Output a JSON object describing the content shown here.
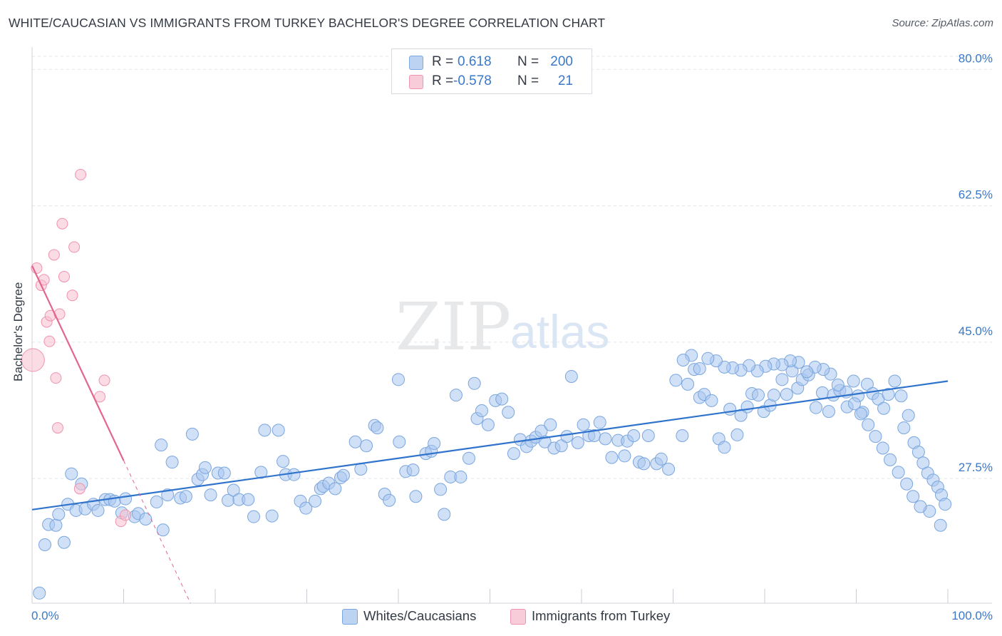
{
  "title": "WHITE/CAUCASIAN VS IMMIGRANTS FROM TURKEY BACHELOR'S DEGREE CORRELATION CHART",
  "source": "Source: ZipAtlas.com",
  "watermark": {
    "zip": "ZIP",
    "atlas": "atlas"
  },
  "legend": {
    "rows": [
      {
        "r_label": "R =",
        "r_value": "0.618",
        "n_label": "N =",
        "n_value": "200"
      },
      {
        "r_label": "R =",
        "r_value": "-0.578",
        "n_label": "N =",
        "n_value": "21"
      }
    ]
  },
  "colors": {
    "blue_fill": "#a9c6ee",
    "blue_stroke": "#7aa6df",
    "blue_line": "#2f73cc",
    "pink_fill": "#f7bfd0",
    "pink_stroke": "#ef93ae",
    "pink_line": "#e4658e",
    "axis_text": "#3a78c9",
    "grid": "#e3e5e9"
  },
  "chart_data": {
    "type": "scatter",
    "title": "WHITE/CAUCASIAN VS IMMIGRANTS FROM TURKEY BACHELOR'S DEGREE CORRELATION CHART",
    "xlabel": "",
    "ylabel": "Bachelor's Degree",
    "xlim": [
      0,
      100
    ],
    "ylim": [
      11.5,
      82.5
    ],
    "x_tick_labels": [
      "0.0%",
      "100.0%"
    ],
    "y_ticks": [
      27.5,
      45.0,
      62.5,
      80.0
    ],
    "y_tick_labels": [
      "27.5%",
      "45.0%",
      "62.5%",
      "80.0%"
    ],
    "grid": "horizontal dashed",
    "legend_position": "top-center",
    "series": [
      {
        "name": "Whites/Caucasians",
        "color": "#a9c6ee",
        "trend": {
          "x": [
            0,
            100
          ],
          "y": [
            23.5,
            40.0
          ],
          "style": "solid"
        },
        "points": [
          [
            0.8,
            12.8
          ],
          [
            1.4,
            19.0
          ],
          [
            1.8,
            21.6
          ],
          [
            2.6,
            21.5
          ],
          [
            2.9,
            22.9
          ],
          [
            3.5,
            19.3
          ],
          [
            3.9,
            24.2
          ],
          [
            4.3,
            28.1
          ],
          [
            4.8,
            23.4
          ],
          [
            5.4,
            26.8
          ],
          [
            5.8,
            23.6
          ],
          [
            6.7,
            24.2
          ],
          [
            7.2,
            23.4
          ],
          [
            8.0,
            24.8
          ],
          [
            8.5,
            24.8
          ],
          [
            9.0,
            24.6
          ],
          [
            9.8,
            23.1
          ],
          [
            10.2,
            24.9
          ],
          [
            11.2,
            22.6
          ],
          [
            11.6,
            23.0
          ],
          [
            12.4,
            22.3
          ],
          [
            13.6,
            24.5
          ],
          [
            14.1,
            31.8
          ],
          [
            14.3,
            20.9
          ],
          [
            14.8,
            25.4
          ],
          [
            15.3,
            29.6
          ],
          [
            16.2,
            25.0
          ],
          [
            16.8,
            25.2
          ],
          [
            17.5,
            33.2
          ],
          [
            18.1,
            27.4
          ],
          [
            18.6,
            28.0
          ],
          [
            18.9,
            28.9
          ],
          [
            19.5,
            25.4
          ],
          [
            20.3,
            28.2
          ],
          [
            21.0,
            28.2
          ],
          [
            21.4,
            24.7
          ],
          [
            22.0,
            26.0
          ],
          [
            22.6,
            24.8
          ],
          [
            23.6,
            24.8
          ],
          [
            24.2,
            22.6
          ],
          [
            25.0,
            28.3
          ],
          [
            25.4,
            33.7
          ],
          [
            26.2,
            22.7
          ],
          [
            26.9,
            33.7
          ],
          [
            27.4,
            29.7
          ],
          [
            27.7,
            28.0
          ],
          [
            28.6,
            28.0
          ],
          [
            29.3,
            24.6
          ],
          [
            29.9,
            23.7
          ],
          [
            30.9,
            24.6
          ],
          [
            31.5,
            26.2
          ],
          [
            31.8,
            26.5
          ],
          [
            32.4,
            26.9
          ],
          [
            33.1,
            26.2
          ],
          [
            33.7,
            27.6
          ],
          [
            34.0,
            27.9
          ],
          [
            35.3,
            32.2
          ],
          [
            35.9,
            28.7
          ],
          [
            36.5,
            31.7
          ],
          [
            37.4,
            34.3
          ],
          [
            37.7,
            34.0
          ],
          [
            38.5,
            25.5
          ],
          [
            39.0,
            24.7
          ],
          [
            40.0,
            40.2
          ],
          [
            40.1,
            32.2
          ],
          [
            40.8,
            28.4
          ],
          [
            41.6,
            28.6
          ],
          [
            41.9,
            25.2
          ],
          [
            43.0,
            30.7
          ],
          [
            43.6,
            31.0
          ],
          [
            43.9,
            32.0
          ],
          [
            44.6,
            26.1
          ],
          [
            45.0,
            22.9
          ],
          [
            45.7,
            27.7
          ],
          [
            46.3,
            38.2
          ],
          [
            46.8,
            27.7
          ],
          [
            47.7,
            30.1
          ],
          [
            48.3,
            39.7
          ],
          [
            48.6,
            35.2
          ],
          [
            49.1,
            36.2
          ],
          [
            49.8,
            34.4
          ],
          [
            50.6,
            37.5
          ],
          [
            51.3,
            37.7
          ],
          [
            52.0,
            36.0
          ],
          [
            52.6,
            30.7
          ],
          [
            53.3,
            32.5
          ],
          [
            54.0,
            31.6
          ],
          [
            54.5,
            32.3
          ],
          [
            55.0,
            32.8
          ],
          [
            55.6,
            33.6
          ],
          [
            56.0,
            32.2
          ],
          [
            56.6,
            34.4
          ],
          [
            57.0,
            31.4
          ],
          [
            57.8,
            31.7
          ],
          [
            58.4,
            32.9
          ],
          [
            58.9,
            40.6
          ],
          [
            59.6,
            32.1
          ],
          [
            60.2,
            34.4
          ],
          [
            60.8,
            33.0
          ],
          [
            61.4,
            33.0
          ],
          [
            62.0,
            34.7
          ],
          [
            62.6,
            32.6
          ],
          [
            63.3,
            30.2
          ],
          [
            64.0,
            32.4
          ],
          [
            64.7,
            30.4
          ],
          [
            65.0,
            32.3
          ],
          [
            65.7,
            33.0
          ],
          [
            66.3,
            29.6
          ],
          [
            66.8,
            29.4
          ],
          [
            67.3,
            33.0
          ],
          [
            68.2,
            29.4
          ],
          [
            68.7,
            30.0
          ],
          [
            69.5,
            28.7
          ],
          [
            70.3,
            40.1
          ],
          [
            71.0,
            33.0
          ],
          [
            71.6,
            39.6
          ],
          [
            72.3,
            41.5
          ],
          [
            72.9,
            37.9
          ],
          [
            73.4,
            38.3
          ],
          [
            74.2,
            37.5
          ],
          [
            75.0,
            32.6
          ],
          [
            75.6,
            31.5
          ],
          [
            76.2,
            36.4
          ],
          [
            77.0,
            33.1
          ],
          [
            77.4,
            35.6
          ],
          [
            78.1,
            36.7
          ],
          [
            78.6,
            38.4
          ],
          [
            79.3,
            38.2
          ],
          [
            79.9,
            36.1
          ],
          [
            80.6,
            36.9
          ],
          [
            81.0,
            38.2
          ],
          [
            81.9,
            40.2
          ],
          [
            82.4,
            38.3
          ],
          [
            83.0,
            41.3
          ],
          [
            83.6,
            39.1
          ],
          [
            84.1,
            40.2
          ],
          [
            84.8,
            40.8
          ],
          [
            85.6,
            36.6
          ],
          [
            86.3,
            38.5
          ],
          [
            87.0,
            36.1
          ],
          [
            87.5,
            38.2
          ],
          [
            88.2,
            38.8
          ],
          [
            89.0,
            36.7
          ],
          [
            89.7,
            40.0
          ],
          [
            90.2,
            38.1
          ],
          [
            90.7,
            36.0
          ],
          [
            91.2,
            39.6
          ],
          [
            91.8,
            38.4
          ],
          [
            92.4,
            37.7
          ],
          [
            93.0,
            36.5
          ],
          [
            93.5,
            38.3
          ],
          [
            94.2,
            40.0
          ],
          [
            94.9,
            38.1
          ],
          [
            95.2,
            34.0
          ],
          [
            95.7,
            35.6
          ],
          [
            96.3,
            32.1
          ],
          [
            96.8,
            30.9
          ],
          [
            97.3,
            29.5
          ],
          [
            97.8,
            28.2
          ],
          [
            98.4,
            27.3
          ],
          [
            98.9,
            26.4
          ],
          [
            99.3,
            25.4
          ],
          [
            99.7,
            24.2
          ],
          [
            99.2,
            21.5
          ],
          [
            98.0,
            23.3
          ],
          [
            97.0,
            23.9
          ],
          [
            96.2,
            25.2
          ],
          [
            95.5,
            26.8
          ],
          [
            94.6,
            28.3
          ],
          [
            93.7,
            29.9
          ],
          [
            92.9,
            31.4
          ],
          [
            92.1,
            32.9
          ],
          [
            91.3,
            34.4
          ],
          [
            90.5,
            35.8
          ],
          [
            89.8,
            37.1
          ],
          [
            88.9,
            38.6
          ],
          [
            88.0,
            39.5
          ],
          [
            87.2,
            40.9
          ],
          [
            86.4,
            41.5
          ],
          [
            85.5,
            41.8
          ],
          [
            84.6,
            41.2
          ],
          [
            83.7,
            42.4
          ],
          [
            82.8,
            42.6
          ],
          [
            81.9,
            42.1
          ],
          [
            81.0,
            42.2
          ],
          [
            80.1,
            41.9
          ],
          [
            79.2,
            41.3
          ],
          [
            78.3,
            42.0
          ],
          [
            77.4,
            41.4
          ],
          [
            76.5,
            41.7
          ],
          [
            75.6,
            41.8
          ],
          [
            74.7,
            42.6
          ],
          [
            73.8,
            42.9
          ],
          [
            72.9,
            41.6
          ],
          [
            72.0,
            43.3
          ],
          [
            71.1,
            42.7
          ]
        ]
      },
      {
        "name": "Immigrants from Turkey",
        "color": "#f7bfd0",
        "trend": {
          "x": [
            0,
            10
          ],
          "y": [
            54.8,
            29.8
          ],
          "style": "solid",
          "extension": {
            "x": [
              10,
              17.3
            ],
            "y": [
              29.8,
              11.5
            ],
            "style": "dashed"
          }
        },
        "points": [
          [
            0.1,
            42.7
          ],
          [
            0.5,
            54.5
          ],
          [
            1.0,
            52.3
          ],
          [
            1.3,
            53.0
          ],
          [
            1.6,
            47.6
          ],
          [
            1.9,
            45.1
          ],
          [
            2.0,
            48.4
          ],
          [
            2.4,
            56.2
          ],
          [
            2.6,
            40.4
          ],
          [
            2.8,
            34.0
          ],
          [
            3.0,
            48.6
          ],
          [
            3.3,
            60.2
          ],
          [
            3.5,
            53.4
          ],
          [
            4.4,
            51.0
          ],
          [
            4.6,
            57.2
          ],
          [
            5.2,
            26.2
          ],
          [
            5.3,
            66.5
          ],
          [
            7.4,
            38.0
          ],
          [
            7.9,
            40.1
          ],
          [
            9.7,
            22.0
          ],
          [
            10.2,
            22.8
          ]
        ]
      }
    ]
  },
  "bottom_legend": [
    {
      "label": "Whites/Caucasians"
    },
    {
      "label": "Immigrants from Turkey"
    }
  ]
}
